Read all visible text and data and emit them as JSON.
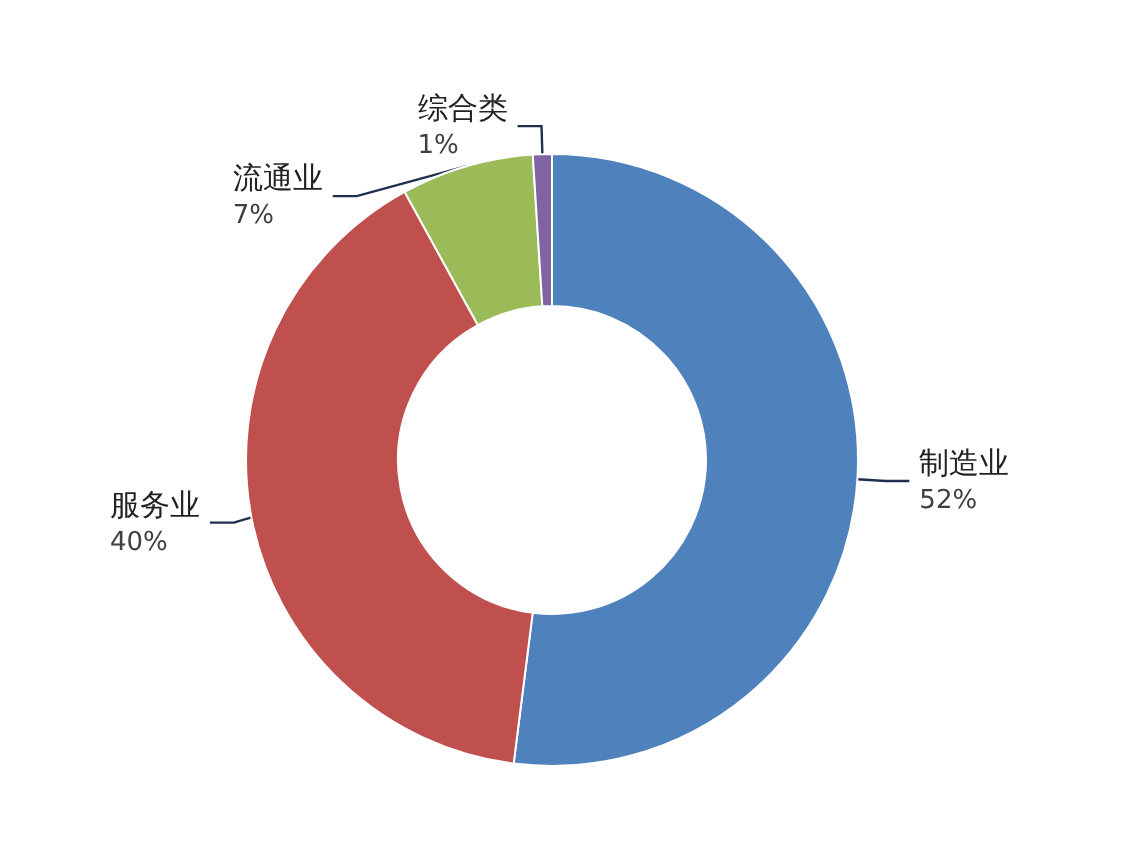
{
  "chart_data": {
    "type": "donut",
    "categories": [
      "制造业",
      "服务业",
      "流通业",
      "综合类"
    ],
    "values": [
      52,
      40,
      7,
      1
    ],
    "colors": [
      "#4f81bd",
      "#c0504d",
      "#9bbb59",
      "#8064a2"
    ],
    "value_labels": [
      "52%",
      "40%",
      "7%",
      "1%"
    ]
  }
}
